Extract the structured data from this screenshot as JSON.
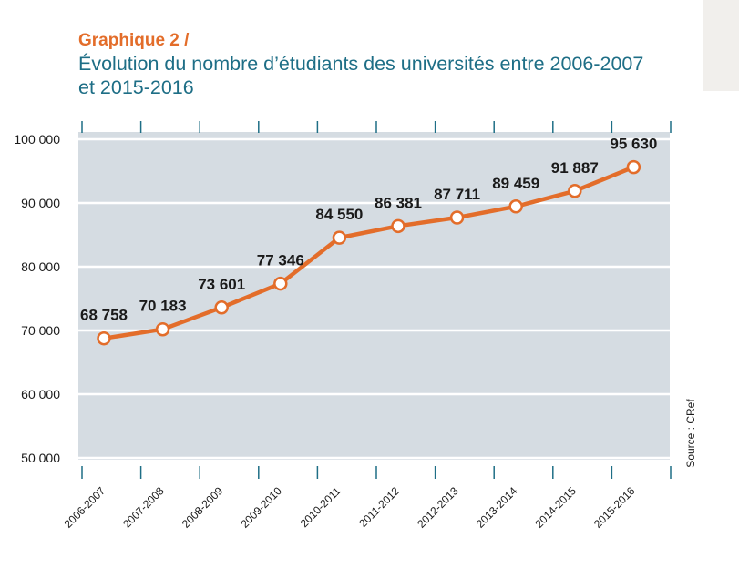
{
  "header": {
    "label": "Graphique 2 /",
    "title": "Évolution du nombre d’étudiants des universités entre 2006-2007 et 2015-2016"
  },
  "source": "Source : CRef",
  "colors": {
    "accent": "#e36d2a",
    "title": "#1e6e86",
    "plot_background": "#d5dce2",
    "grid": "#ffffff"
  },
  "chart_data": {
    "type": "line",
    "categories": [
      "2006-2007",
      "2007-2008",
      "2008-2009",
      "2009-2010",
      "2010-2011",
      "2011-2012",
      "2012-2013",
      "2013-2014",
      "2014-2015",
      "2015-2016"
    ],
    "values": [
      68758,
      70183,
      73601,
      77346,
      84550,
      86381,
      87711,
      89459,
      91887,
      95630
    ],
    "data_labels": [
      "68 758",
      "70 183",
      "73 601",
      "77 346",
      "84 550",
      "86 381",
      "87 711",
      "89 459",
      "91 887",
      "95 630"
    ],
    "yticks": [
      50000,
      60000,
      70000,
      80000,
      90000,
      100000
    ],
    "ytick_labels": [
      "50 000",
      "60 000",
      "70 000",
      "80 000",
      "90 000",
      "100 000"
    ],
    "ylim": [
      50000,
      100000
    ],
    "grid": true,
    "legend": "none"
  }
}
